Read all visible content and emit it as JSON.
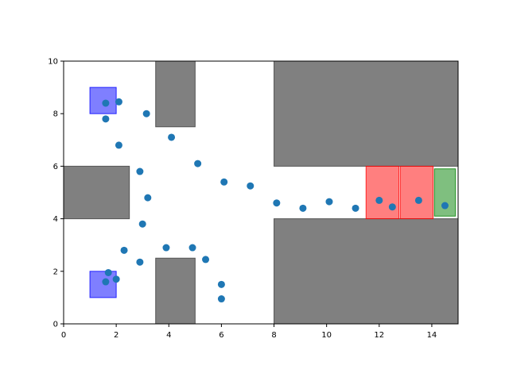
{
  "chart_data": {
    "type": "scatter",
    "title": "",
    "xlabel": "",
    "ylabel": "",
    "xlim": [
      0,
      15
    ],
    "ylim": [
      0,
      10
    ],
    "grid": false,
    "x_ticks": [
      0,
      2,
      4,
      6,
      8,
      10,
      12,
      14
    ],
    "y_ticks": [
      0,
      2,
      4,
      6,
      8,
      10
    ],
    "x_tick_labels": [
      "0",
      "2",
      "4",
      "6",
      "8",
      "10",
      "12",
      "14"
    ],
    "y_tick_labels": [
      "0",
      "2",
      "4",
      "6",
      "8",
      "10"
    ],
    "point_color": "#1f77b4",
    "points": [
      [
        1.6,
        8.4
      ],
      [
        2.1,
        8.45
      ],
      [
        1.6,
        7.8
      ],
      [
        3.15,
        8.0
      ],
      [
        2.1,
        6.8
      ],
      [
        4.1,
        7.1
      ],
      [
        2.9,
        5.8
      ],
      [
        5.1,
        6.1
      ],
      [
        3.2,
        4.8
      ],
      [
        6.1,
        5.4
      ],
      [
        7.1,
        5.25
      ],
      [
        8.1,
        4.6
      ],
      [
        9.1,
        4.4
      ],
      [
        10.1,
        4.65
      ],
      [
        11.1,
        4.4
      ],
      [
        12.0,
        4.7
      ],
      [
        12.5,
        4.45
      ],
      [
        13.5,
        4.7
      ],
      [
        14.5,
        4.5
      ],
      [
        3.0,
        3.8
      ],
      [
        2.3,
        2.8
      ],
      [
        2.9,
        2.35
      ],
      [
        3.9,
        2.9
      ],
      [
        4.9,
        2.9
      ],
      [
        5.4,
        2.45
      ],
      [
        6.0,
        1.5
      ],
      [
        6.0,
        0.95
      ],
      [
        1.7,
        1.95
      ],
      [
        2.0,
        1.7
      ],
      [
        1.6,
        1.6
      ]
    ],
    "regions": [
      {
        "kind": "obstacle",
        "x": [
          3.5,
          5.0
        ],
        "y": [
          7.5,
          10.0
        ]
      },
      {
        "kind": "obstacle",
        "x": [
          8.0,
          15.0
        ],
        "y": [
          6.0,
          10.0
        ]
      },
      {
        "kind": "obstacle",
        "x": [
          0.0,
          2.5
        ],
        "y": [
          4.0,
          6.0
        ]
      },
      {
        "kind": "obstacle",
        "x": [
          3.5,
          5.0
        ],
        "y": [
          0.0,
          2.5
        ]
      },
      {
        "kind": "obstacle",
        "x": [
          8.0,
          15.0
        ],
        "y": [
          0.0,
          4.0
        ]
      },
      {
        "kind": "start",
        "x": [
          1.0,
          2.0
        ],
        "y": [
          8.0,
          9.0
        ]
      },
      {
        "kind": "start",
        "x": [
          1.0,
          2.0
        ],
        "y": [
          1.0,
          2.0
        ]
      },
      {
        "kind": "hazard",
        "x": [
          11.5,
          12.75
        ],
        "y": [
          4.0,
          6.0
        ]
      },
      {
        "kind": "hazard",
        "x": [
          12.8,
          14.05
        ],
        "y": [
          4.0,
          6.0
        ]
      },
      {
        "kind": "goal",
        "x": [
          14.1,
          14.9
        ],
        "y": [
          4.1,
          5.9
        ]
      }
    ],
    "region_colors": {
      "obstacle": {
        "fill": "#808080",
        "stroke": "#555555",
        "opacity": 1
      },
      "start": {
        "fill": "#0000ff",
        "stroke": "#0000ff",
        "opacity": 0.5
      },
      "hazard": {
        "fill": "#ff0000",
        "stroke": "#ff0000",
        "opacity": 0.5
      },
      "goal": {
        "fill": "#008000",
        "stroke": "#008000",
        "opacity": 0.5
      }
    }
  }
}
